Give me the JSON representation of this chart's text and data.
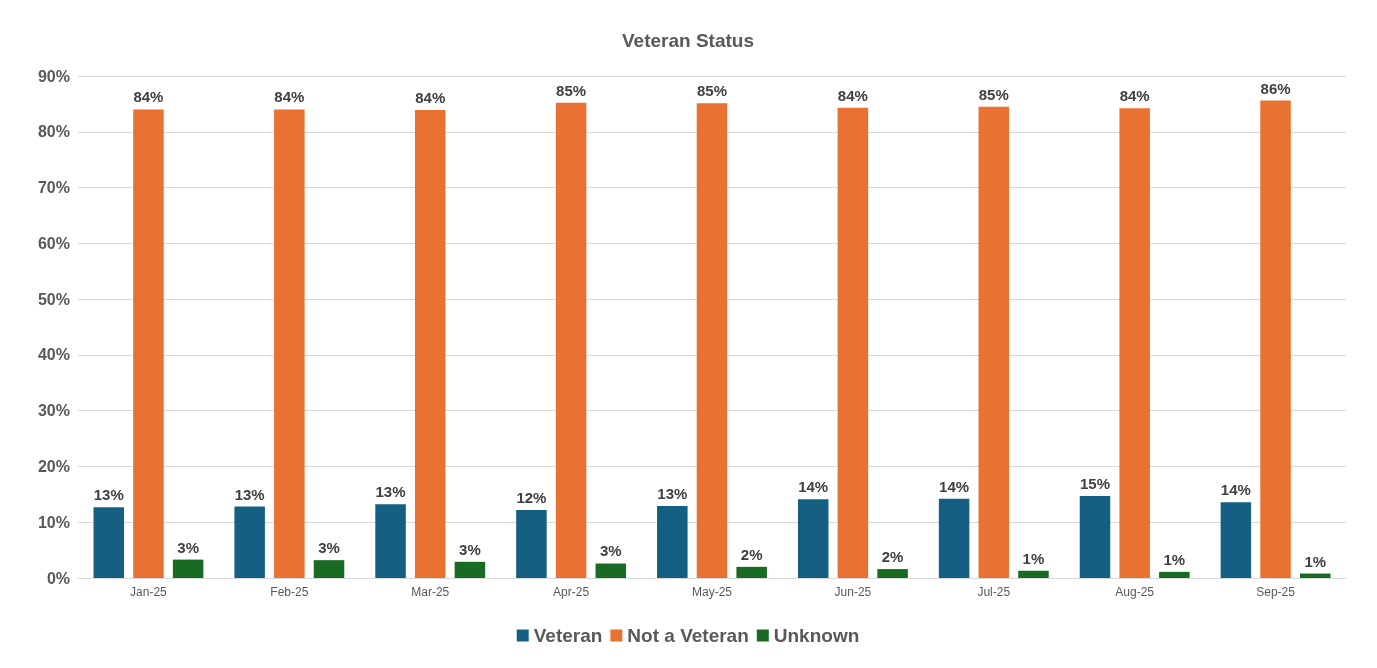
{
  "chart_data": {
    "type": "bar",
    "title": "Veteran Status",
    "categories": [
      "Jan-25",
      "Feb-25",
      "Mar-25",
      "Apr-25",
      "May-25",
      "Jun-25",
      "Jul-25",
      "Aug-25",
      "Sep-25"
    ],
    "series": [
      {
        "name": "Veteran",
        "color": "#156082",
        "values": [
          12.7,
          12.8,
          13.2,
          12.2,
          12.9,
          14.1,
          14.2,
          14.7,
          13.6
        ],
        "value_labels": [
          "13%",
          "13%",
          "13%",
          "12%",
          "13%",
          "14%",
          "14%",
          "15%",
          "14%"
        ]
      },
      {
        "name": "Not a Veteran",
        "color": "#e97132",
        "values": [
          84,
          84,
          83.9,
          85.2,
          85.1,
          84.3,
          84.5,
          84.2,
          85.6
        ],
        "value_labels": [
          "84%",
          "84%",
          "84%",
          "85%",
          "85%",
          "84%",
          "85%",
          "84%",
          "86%"
        ]
      },
      {
        "name": "Unknown",
        "color": "#196b24",
        "values": [
          3.3,
          3.2,
          2.9,
          2.6,
          2.0,
          1.6,
          1.3,
          1.1,
          0.8
        ],
        "value_labels": [
          "3%",
          "3%",
          "3%",
          "3%",
          "2%",
          "2%",
          "1%",
          "1%",
          "1%"
        ]
      }
    ],
    "ylim": [
      0,
      90
    ],
    "yticks": [
      {
        "value": 0,
        "label": "0%"
      },
      {
        "value": 10,
        "label": "10%"
      },
      {
        "value": 20,
        "label": "20%"
      },
      {
        "value": 30,
        "label": "30%"
      },
      {
        "value": 40,
        "label": "40%"
      },
      {
        "value": 50,
        "label": "50%"
      },
      {
        "value": 60,
        "label": "60%"
      },
      {
        "value": 70,
        "label": "70%"
      },
      {
        "value": 80,
        "label": "80%"
      },
      {
        "value": 90,
        "label": "90%"
      }
    ],
    "grid": "y",
    "legend": "bottom"
  }
}
